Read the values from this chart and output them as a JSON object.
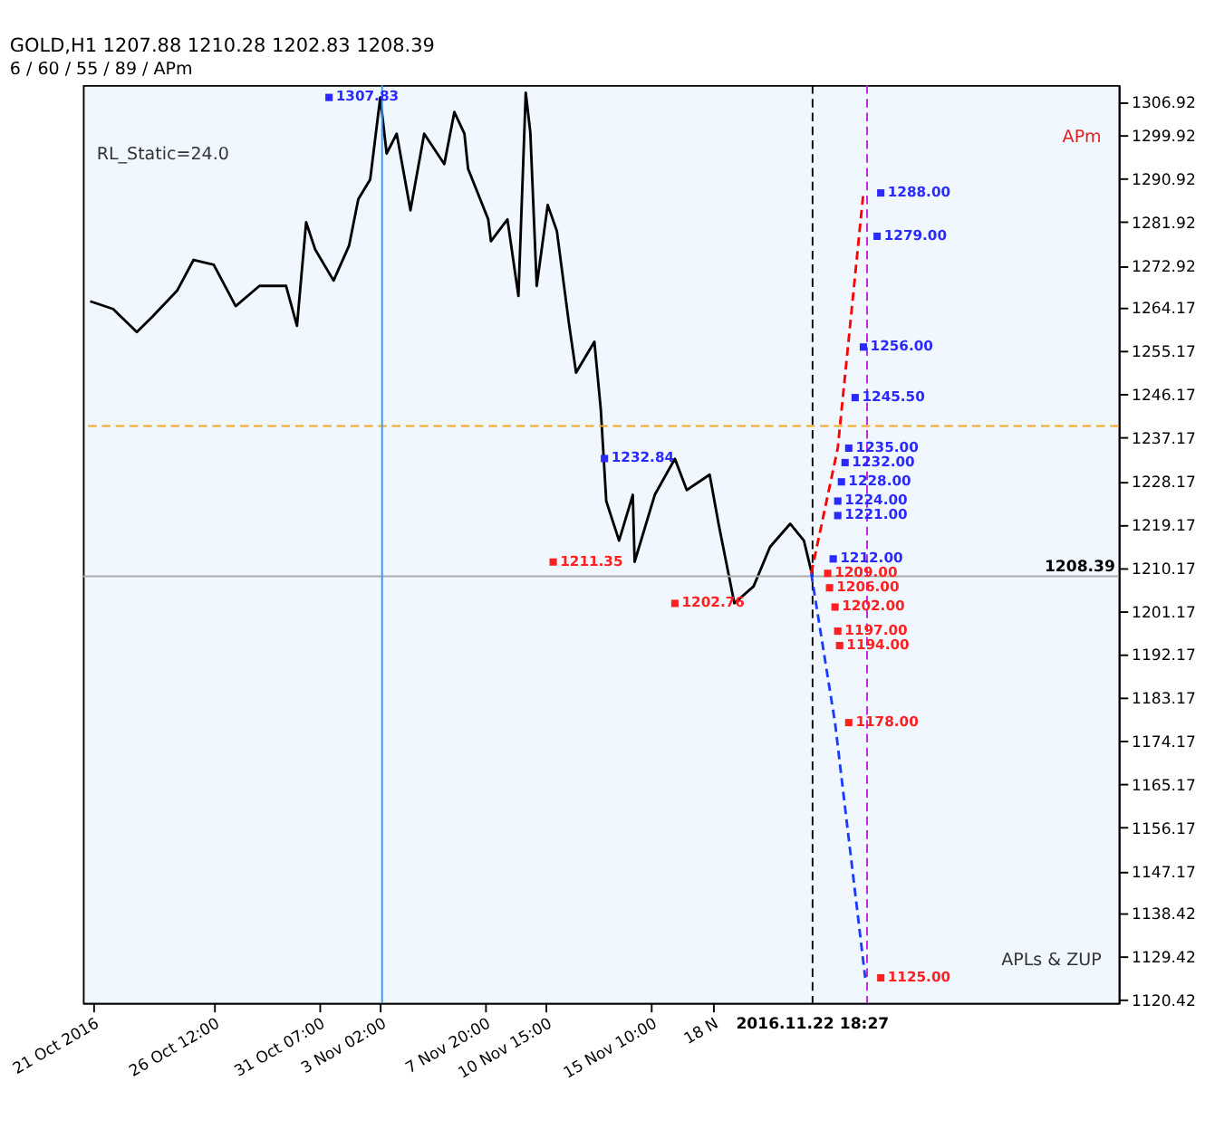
{
  "chart_data": {
    "type": "line",
    "title": "GOLD,H1  1207.88 1210.28 1202.83 1208.39",
    "subtitle": "6 / 60 / 55 / 89 / APm",
    "xlim": [
      "2016-10-20T13:00",
      "2016-12-06T17:00"
    ],
    "ylim": [
      1119.8,
      1310.4
    ],
    "xticks": [
      {
        "value": "2016-10-21",
        "label": "21 Oct 2016"
      },
      {
        "value": "2016-10-26T12:00",
        "label": "26 Oct 12:00"
      },
      {
        "value": "2016-10-31T07:00",
        "label": "31 Oct 07:00"
      },
      {
        "value": "2016-11-03T02:00",
        "label": "3 Nov 02:00"
      },
      {
        "value": "2016-11-07T20:00",
        "label": "7 Nov 20:00"
      },
      {
        "value": "2016-11-10T15:00",
        "label": "10 Nov 15:00"
      },
      {
        "value": "2016-11-15T10:00",
        "label": "15 Nov 10:00"
      },
      {
        "value": "2016-11-18T05:00",
        "label": "18 N"
      }
    ],
    "yticks": [
      1306.92,
      1299.92,
      1290.92,
      1281.92,
      1272.92,
      1264.17,
      1255.17,
      1246.17,
      1237.17,
      1228.17,
      1219.17,
      1210.17,
      1201.17,
      1192.17,
      1183.17,
      1174.17,
      1165.17,
      1156.17,
      1147.17,
      1138.42,
      1129.42,
      1120.42
    ],
    "grid": false,
    "marker": "none",
    "series": [
      {
        "color": "#000000",
        "line_style": "solid",
        "x": [
          "2016-10-20T21:00",
          "2016-10-21T22:00",
          "2016-10-23T00:00",
          "2016-10-23T17:00",
          "2016-10-24T20:00",
          "2016-10-25T14:00",
          "2016-10-26T12:00",
          "2016-10-27T12:00",
          "2016-10-28T14:00",
          "2016-10-29T19:00",
          "2016-10-30T07:00",
          "2016-10-30T17:00",
          "2016-10-31T03:00",
          "2016-10-31T23:00",
          "2016-11-01T16:00",
          "2016-11-02T02:00",
          "2016-11-02T15:00",
          "2016-11-03T02:00",
          "2016-11-03T09:00",
          "2016-11-03T20:00",
          "2016-11-04T11:00",
          "2016-11-05T02:00",
          "2016-11-06T00:00",
          "2016-11-06T11:00",
          "2016-11-06T22:00",
          "2016-11-07T02:00",
          "2016-11-08T00:00",
          "2016-11-08T03:00",
          "2016-11-08T21:00",
          "2016-11-09T09:00",
          "2016-11-09T17:00",
          "2016-11-09T22:00",
          "2016-11-10T05:00",
          "2016-11-10T17:00",
          "2016-11-11T03:00",
          "2016-11-11T16:00",
          "2016-11-12T00:00",
          "2016-11-12T20:00",
          "2016-11-13T03:00",
          "2016-11-13T09:00",
          "2016-11-13T23:00",
          "2016-11-14T14:00",
          "2016-11-14T16:00",
          "2016-11-15T14:00",
          "2016-11-16T12:00",
          "2016-11-17T01:00",
          "2016-11-18T02:00",
          "2016-11-18T12:00",
          "2016-11-19T05:00",
          "2016-11-20T02:00",
          "2016-11-20T20:00",
          "2016-11-21T18:00",
          "2016-11-22T09:00",
          "2016-11-22T17:00"
        ],
        "values": [
          1265.5,
          1263.9,
          1259.1,
          1262.3,
          1267.7,
          1274.1,
          1273.1,
          1264.5,
          1268.7,
          1268.7,
          1260.4,
          1281.9,
          1276.2,
          1269.8,
          1277.1,
          1286.7,
          1290.8,
          1307.8,
          1296.2,
          1300.3,
          1284.4,
          1300.3,
          1294.0,
          1304.8,
          1300.3,
          1293.0,
          1282.5,
          1278.0,
          1282.5,
          1266.6,
          1308.8,
          1300.6,
          1268.7,
          1285.5,
          1280.1,
          1261.2,
          1250.7,
          1257.1,
          1243.1,
          1224.0,
          1215.8,
          1225.3,
          1211.4,
          1225.3,
          1232.8,
          1226.3,
          1229.5,
          1219.0,
          1202.8,
          1206.3,
          1214.5,
          1219.3,
          1215.8,
          1209.5
        ]
      },
      {
        "color": "#ff0000",
        "line_style": "dashed",
        "x": [
          "2016-11-22T17:00",
          "2016-11-23T22:00",
          "2016-11-25T02:00"
        ],
        "values": [
          1209.0,
          1235.0,
          1288.0
        ]
      },
      {
        "color": "#1a3cff",
        "line_style": "dashed",
        "x": [
          "2016-11-22T17:00",
          "2016-11-23T19:00",
          "2016-11-25T04:00"
        ],
        "values": [
          1209.0,
          1178.0,
          1125.0
        ]
      },
      {
        "type": "scatter",
        "marker": "square",
        "color": "#2a2aff",
        "x": [
          "2016-10-31T18:00",
          "2016-11-13T07:00",
          "2016-11-25T21:00",
          "2016-11-25T17:00",
          "2016-11-25T02:00",
          "2016-11-24T17:00",
          "2016-11-24T10:00",
          "2016-11-24T06:00",
          "2016-11-24T02:00",
          "2016-11-23T22:00",
          "2016-11-23T22:00",
          "2016-11-23T17:00"
        ],
        "values": [
          1307.83,
          1232.84,
          1288.0,
          1279.0,
          1256.0,
          1245.5,
          1235.0,
          1232.0,
          1228.0,
          1224.0,
          1221.0,
          1212.0
        ],
        "value_labels": [
          "1307.83",
          "1232.84",
          "1288.00",
          "1279.00",
          "1256.00",
          "1245.50",
          "1235.00",
          "1232.00",
          "1228.00",
          "1224.00",
          "1221.00",
          "1212.00"
        ]
      },
      {
        "type": "scatter",
        "marker": "square",
        "color": "#ff2020",
        "x": [
          "2016-11-10T23:00",
          "2016-11-16T12:00",
          "2016-11-23T11:00",
          "2016-11-23T13:00",
          "2016-11-23T19:00",
          "2016-11-23T22:00",
          "2016-11-24T00:00",
          "2016-11-24T10:00",
          "2016-11-25T21:00"
        ],
        "values": [
          1211.35,
          1202.76,
          1209.0,
          1206.0,
          1202.0,
          1197.0,
          1194.0,
          1178.0,
          1125.0
        ],
        "value_labels": [
          "1211.35",
          "1202.76",
          "1209.00",
          "1206.00",
          "1202.00",
          "1197.00",
          "1194.00",
          "1178.00",
          "1125.00"
        ]
      }
    ],
    "ref_lines": [
      {
        "axis": "y",
        "value": 1208.39,
        "label": "1208.39",
        "color": "#aaaaaa",
        "line_style": "solid"
      },
      {
        "axis": "y",
        "value": 1239.6,
        "color": "#f5a623",
        "line_style": "dashed"
      },
      {
        "axis": "x",
        "value": "2016-11-22T18:27",
        "label": "2016.11.22 18:27",
        "color": "#000000",
        "line_style": "dashed"
      },
      {
        "axis": "x",
        "value": "2016-11-25T06:00",
        "color": "#c020e0",
        "line_style": "dashed"
      },
      {
        "axis": "x",
        "value": "2016-11-03T04:00",
        "color": "#3399ff",
        "line_style": "solid"
      }
    ],
    "annotations": [
      "RL_Static=24.0",
      "APm",
      "APLs & ZUP"
    ]
  }
}
